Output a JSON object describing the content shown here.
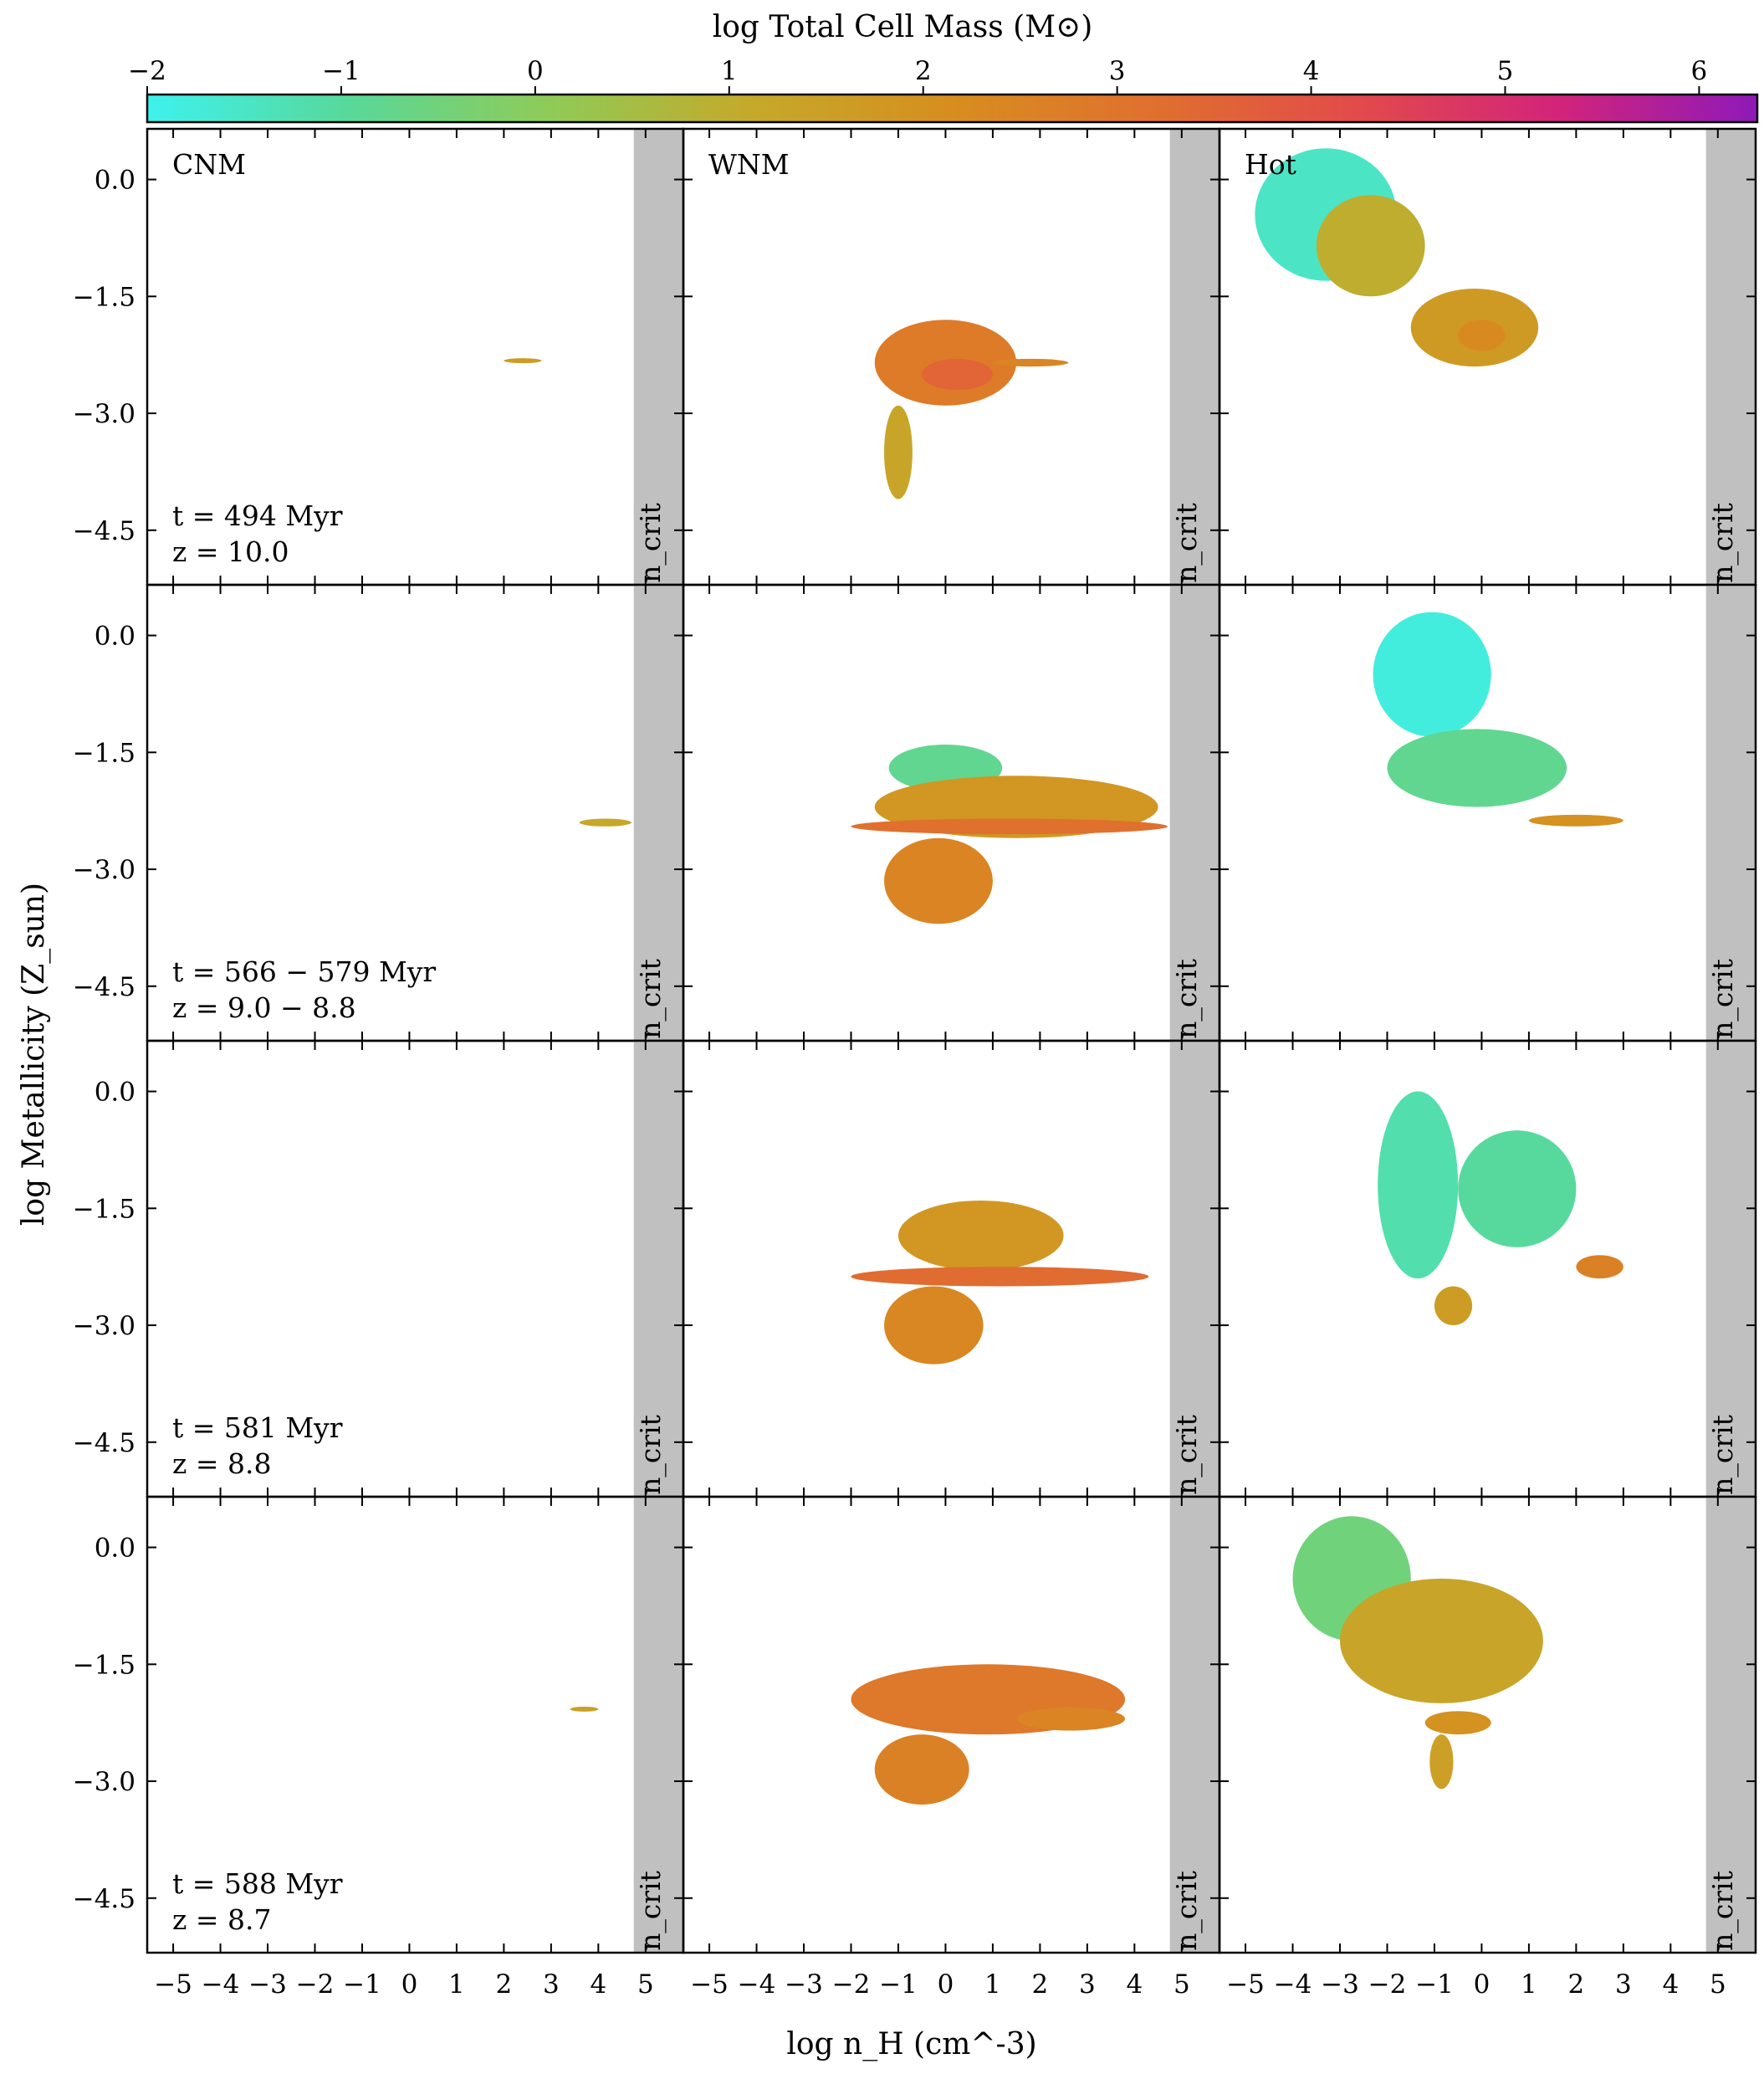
{
  "chart_data": {
    "type": "heatmap",
    "title": "",
    "xlabel": "log n_H (cm^-3)",
    "ylabel": "log Metallicity (Z_sun)",
    "xlim": [
      -5.55,
      5.8
    ],
    "ylim": [
      -5.2,
      0.65
    ],
    "xticks": [
      -5,
      -4,
      -3,
      -2,
      -1,
      0,
      1,
      2,
      3,
      4,
      5
    ],
    "yticks": [
      0.0,
      -1.5,
      -3.0,
      -4.5
    ],
    "ytick_labels": [
      "0.0",
      "−1.5",
      "−3.0",
      "−4.5"
    ],
    "xtick_labels": [
      "−5",
      "−4",
      "−3",
      "−2",
      "−1",
      "0",
      "1",
      "2",
      "3",
      "4",
      "5"
    ],
    "colorbar": {
      "label": "log  Total Cell Mass (M⊙)",
      "range": [
        -2,
        6.3
      ],
      "ticks": [
        -2,
        -1,
        0,
        1,
        2,
        3,
        4,
        5,
        6
      ],
      "tick_labels": [
        "−2",
        "−1",
        "0",
        "1",
        "2",
        "3",
        "4",
        "5",
        "6"
      ],
      "colors": [
        "#3ef2ee",
        "#58d89a",
        "#8fcb57",
        "#c5a92a",
        "#d78e1e",
        "#e0702e",
        "#e24b4a",
        "#d3247a",
        "#8e1ab8"
      ]
    },
    "n_crit": {
      "label": "n_crit",
      "x_range": [
        4.75,
        5.8
      ],
      "color": "#c0c0c0"
    },
    "columns": [
      "CNM",
      "WNM",
      "Hot"
    ],
    "rows": [
      {
        "time_label": "t = 494 Myr",
        "z_label": "z = 10.0",
        "panels": {
          "CNM": [
            {
              "x": [
                2.0,
                2.8
              ],
              "y": [
                -2.35,
                -2.3
              ],
              "logm": 1.6
            }
          ],
          "WNM": [
            {
              "x": [
                -1.5,
                1.5
              ],
              "y": [
                -2.9,
                -1.8
              ],
              "logm": 2.8
            },
            {
              "x": [
                -0.5,
                1.0
              ],
              "y": [
                -2.7,
                -2.3
              ],
              "logm": 3.5
            },
            {
              "x": [
                1.0,
                2.6
              ],
              "y": [
                -2.4,
                -2.3
              ],
              "logm": 2.5
            },
            {
              "x": [
                -1.3,
                -0.7
              ],
              "y": [
                -4.1,
                -2.9
              ],
              "logm": 1.3
            }
          ],
          "Hot": [
            {
              "x": [
                -4.8,
                -1.8
              ],
              "y": [
                -1.3,
                0.4
              ],
              "logm": -1.5
            },
            {
              "x": [
                -3.5,
                -1.2
              ],
              "y": [
                -1.5,
                -0.2
              ],
              "logm": 1.0
            },
            {
              "x": [
                -1.5,
                1.2
              ],
              "y": [
                -2.4,
                -1.4
              ],
              "logm": 1.7
            },
            {
              "x": [
                -0.5,
                0.5
              ],
              "y": [
                -2.2,
                -1.8
              ],
              "logm": 2.3
            }
          ]
        }
      },
      {
        "time_label": "t = 566 − 579 Myr",
        "z_label": "z = 9.0 − 8.8",
        "panels": {
          "CNM": [
            {
              "x": [
                3.6,
                4.7
              ],
              "y": [
                -2.45,
                -2.35
              ],
              "logm": 1.2
            }
          ],
          "WNM": [
            {
              "x": [
                -1.2,
                1.2
              ],
              "y": [
                -2.0,
                -1.4
              ],
              "logm": -0.8
            },
            {
              "x": [
                -1.5,
                4.5
              ],
              "y": [
                -2.6,
                -1.8
              ],
              "logm": 1.8
            },
            {
              "x": [
                -2.0,
                4.7
              ],
              "y": [
                -2.55,
                -2.35
              ],
              "logm": 3.2
            },
            {
              "x": [
                -1.3,
                1.0
              ],
              "y": [
                -3.7,
                -2.6
              ],
              "logm": 2.5
            }
          ],
          "Hot": [
            {
              "x": [
                -2.3,
                0.2
              ],
              "y": [
                -1.3,
                0.3
              ],
              "logm": -1.8
            },
            {
              "x": [
                -2.0,
                1.8
              ],
              "y": [
                -2.2,
                -1.2
              ],
              "logm": -0.8
            },
            {
              "x": [
                1.0,
                3.0
              ],
              "y": [
                -2.45,
                -2.3
              ],
              "logm": 2.0
            }
          ]
        }
      },
      {
        "time_label": "t = 581 Myr",
        "z_label": "z = 8.8",
        "panels": {
          "CNM": [],
          "WNM": [
            {
              "x": [
                -1.0,
                2.5
              ],
              "y": [
                -2.3,
                -1.4
              ],
              "logm": 1.8
            },
            {
              "x": [
                -2.0,
                4.3
              ],
              "y": [
                -2.5,
                -2.25
              ],
              "logm": 3.3
            },
            {
              "x": [
                -1.3,
                0.8
              ],
              "y": [
                -3.5,
                -2.5
              ],
              "logm": 2.4
            }
          ],
          "Hot": [
            {
              "x": [
                -2.2,
                -0.5
              ],
              "y": [
                -2.4,
                0.0
              ],
              "logm": -1.2
            },
            {
              "x": [
                -0.5,
                2.0
              ],
              "y": [
                -2.0,
                -0.5
              ],
              "logm": -1.0
            },
            {
              "x": [
                2.0,
                3.0
              ],
              "y": [
                -2.4,
                -2.1
              ],
              "logm": 2.6
            },
            {
              "x": [
                -1.0,
                -0.2
              ],
              "y": [
                -3.0,
                -2.5
              ],
              "logm": 1.6
            }
          ]
        }
      },
      {
        "time_label": "t = 588 Myr",
        "z_label": "z = 8.7",
        "panels": {
          "CNM": [
            {
              "x": [
                3.4,
                4.0
              ],
              "y": [
                -2.1,
                -2.05
              ],
              "logm": 1.5
            }
          ],
          "WNM": [
            {
              "x": [
                -2.0,
                3.8
              ],
              "y": [
                -2.4,
                -1.5
              ],
              "logm": 2.9
            },
            {
              "x": [
                -1.5,
                0.5
              ],
              "y": [
                -3.3,
                -2.4
              ],
              "logm": 2.6
            },
            {
              "x": [
                1.5,
                3.8
              ],
              "y": [
                -2.35,
                -2.05
              ],
              "logm": 2.5
            }
          ],
          "Hot": [
            {
              "x": [
                -4.0,
                -1.5
              ],
              "y": [
                -1.2,
                0.4
              ],
              "logm": -0.5
            },
            {
              "x": [
                -3.0,
                1.3
              ],
              "y": [
                -2.0,
                -0.4
              ],
              "logm": 1.3
            },
            {
              "x": [
                -1.2,
                0.2
              ],
              "y": [
                -2.4,
                -2.1
              ],
              "logm": 2.0
            },
            {
              "x": [
                -1.1,
                -0.6
              ],
              "y": [
                -3.1,
                -2.4
              ],
              "logm": 1.5
            }
          ]
        }
      }
    ]
  }
}
